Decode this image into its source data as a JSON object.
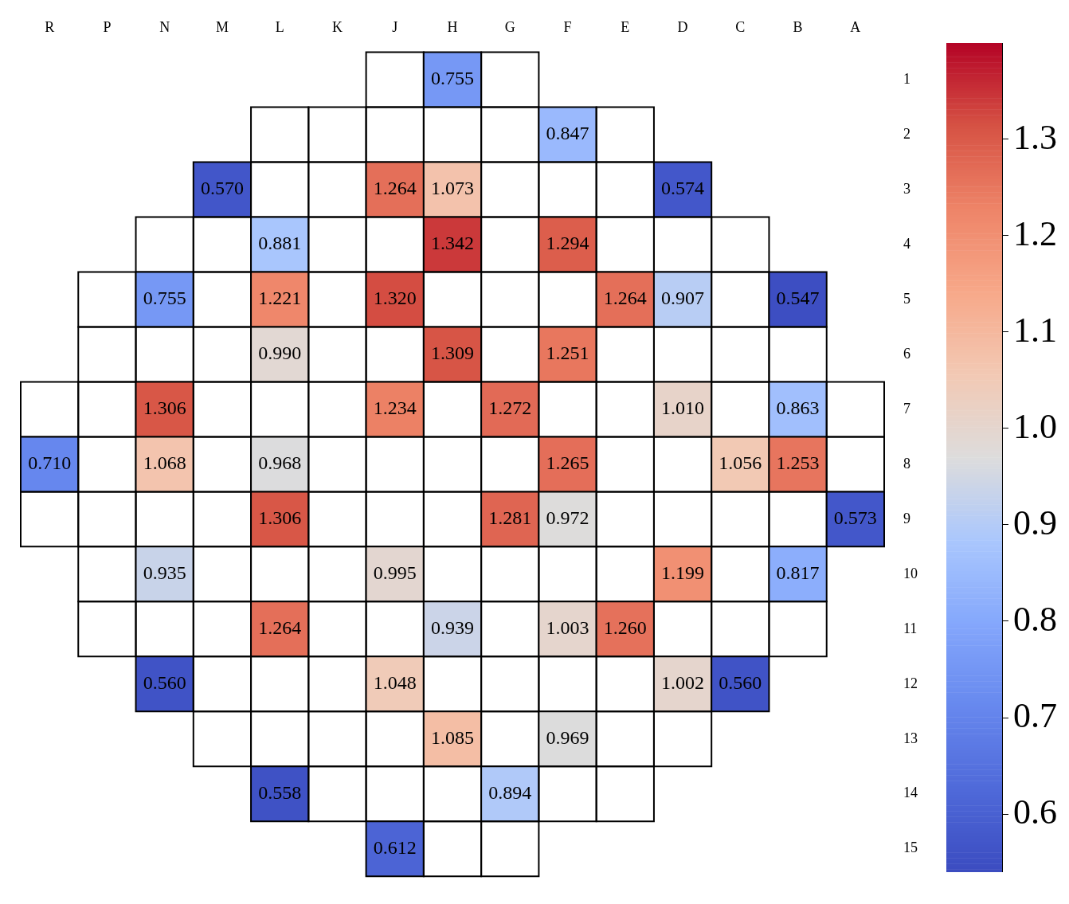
{
  "chart_data": {
    "type": "heatmap",
    "categories": [
      "R",
      "P",
      "N",
      "M",
      "L",
      "K",
      "J",
      "H",
      "G",
      "F",
      "E",
      "D",
      "C",
      "B",
      "A"
    ],
    "y_categories": [
      "1",
      "2",
      "3",
      "4",
      "5",
      "6",
      "7",
      "8",
      "9",
      "10",
      "11",
      "12",
      "13",
      "14",
      "15"
    ],
    "cells": [
      [
        null,
        null,
        null,
        null,
        null,
        null,
        null,
        0.755,
        null,
        null,
        null,
        null,
        null,
        null,
        null
      ],
      [
        null,
        null,
        null,
        null,
        null,
        null,
        null,
        null,
        null,
        0.847,
        null,
        null,
        null,
        null,
        null
      ],
      [
        null,
        null,
        null,
        0.57,
        null,
        null,
        1.264,
        1.073,
        null,
        null,
        null,
        0.574,
        null,
        null,
        null
      ],
      [
        null,
        null,
        null,
        null,
        0.881,
        null,
        null,
        1.342,
        null,
        1.294,
        null,
        null,
        null,
        null,
        null
      ],
      [
        null,
        null,
        0.755,
        null,
        1.221,
        null,
        1.32,
        null,
        null,
        null,
        1.264,
        0.907,
        null,
        0.547,
        null
      ],
      [
        null,
        null,
        null,
        null,
        0.99,
        null,
        null,
        1.309,
        null,
        1.251,
        null,
        null,
        null,
        null,
        null
      ],
      [
        null,
        null,
        1.306,
        null,
        null,
        null,
        1.234,
        null,
        1.272,
        null,
        null,
        1.01,
        null,
        0.863,
        null
      ],
      [
        0.71,
        null,
        1.068,
        null,
        0.968,
        null,
        null,
        null,
        null,
        1.265,
        null,
        null,
        1.056,
        1.253,
        null
      ],
      [
        null,
        null,
        null,
        null,
        1.306,
        null,
        null,
        null,
        1.281,
        0.972,
        null,
        null,
        null,
        null,
        0.573
      ],
      [
        null,
        null,
        0.935,
        null,
        null,
        null,
        0.995,
        null,
        null,
        null,
        null,
        1.199,
        null,
        0.817,
        null
      ],
      [
        null,
        null,
        null,
        null,
        1.264,
        null,
        null,
        0.939,
        null,
        1.003,
        1.26,
        null,
        null,
        null,
        null
      ],
      [
        null,
        null,
        0.56,
        null,
        null,
        null,
        1.048,
        null,
        null,
        null,
        null,
        1.002,
        0.56,
        null,
        null
      ],
      [
        null,
        null,
        null,
        null,
        null,
        null,
        null,
        1.085,
        null,
        0.969,
        null,
        null,
        null,
        null,
        null
      ],
      [
        null,
        null,
        null,
        null,
        0.558,
        null,
        null,
        null,
        0.894,
        null,
        null,
        null,
        null,
        null,
        null
      ],
      [
        null,
        null,
        null,
        null,
        null,
        null,
        0.612,
        null,
        null,
        null,
        null,
        null,
        null,
        null,
        null
      ]
    ],
    "cell_labels": [
      [
        null,
        null,
        null,
        null,
        null,
        null,
        null,
        "0.755",
        null,
        null,
        null,
        null,
        null,
        null,
        null
      ],
      [
        null,
        null,
        null,
        null,
        null,
        null,
        null,
        null,
        null,
        "0.847",
        null,
        null,
        null,
        null,
        null
      ],
      [
        null,
        null,
        null,
        "0.570",
        null,
        null,
        "1.264",
        "1.073",
        null,
        null,
        null,
        "0.574",
        null,
        null,
        null
      ],
      [
        null,
        null,
        null,
        null,
        "0.881",
        null,
        null,
        "1.342",
        null,
        "1.294",
        null,
        null,
        null,
        null,
        null
      ],
      [
        null,
        null,
        "0.755",
        null,
        "1.221",
        null,
        "1.320",
        null,
        null,
        null,
        "1.264",
        "0.907",
        null,
        "0.547",
        null
      ],
      [
        null,
        null,
        null,
        null,
        "0.990",
        null,
        null,
        "1.309",
        null,
        "1.251",
        null,
        null,
        null,
        null,
        null
      ],
      [
        null,
        null,
        "1.306",
        null,
        null,
        null,
        "1.234",
        null,
        "1.272",
        null,
        null,
        "1.010",
        null,
        "0.863",
        null
      ],
      [
        "0.710",
        null,
        "1.068",
        null,
        "0.968",
        null,
        null,
        null,
        null,
        "1.265",
        null,
        null,
        "1.056",
        "1.253",
        null
      ],
      [
        null,
        null,
        null,
        null,
        "1.306",
        null,
        null,
        null,
        "1.281",
        "0.972",
        null,
        null,
        null,
        null,
        "0.573"
      ],
      [
        null,
        null,
        "0.935",
        null,
        null,
        null,
        "0.995",
        null,
        null,
        null,
        null,
        "1.199",
        null,
        "0.817",
        null
      ],
      [
        null,
        null,
        null,
        null,
        "1.264",
        null,
        null,
        "0.939",
        null,
        "1.003",
        "1.260",
        null,
        null,
        null,
        null
      ],
      [
        null,
        null,
        "0.560",
        null,
        null,
        null,
        "1.048",
        null,
        null,
        null,
        null,
        "1.002",
        "0.560",
        null,
        null
      ],
      [
        null,
        null,
        null,
        null,
        null,
        null,
        null,
        "1.085",
        null,
        "0.969",
        null,
        null,
        null,
        null,
        null
      ],
      [
        null,
        null,
        null,
        null,
        "0.558",
        null,
        null,
        null,
        "0.894",
        null,
        null,
        null,
        null,
        null,
        null
      ],
      [
        null,
        null,
        null,
        null,
        null,
        null,
        "0.612",
        null,
        null,
        null,
        null,
        null,
        null,
        null,
        null
      ]
    ],
    "clim": [
      0.54,
      1.4
    ],
    "cticks": [
      0.6,
      0.7,
      0.8,
      0.9,
      {
        "value": 1.0,
        "label": "1.0"
      },
      1.1,
      1.2,
      1.3
    ]
  }
}
